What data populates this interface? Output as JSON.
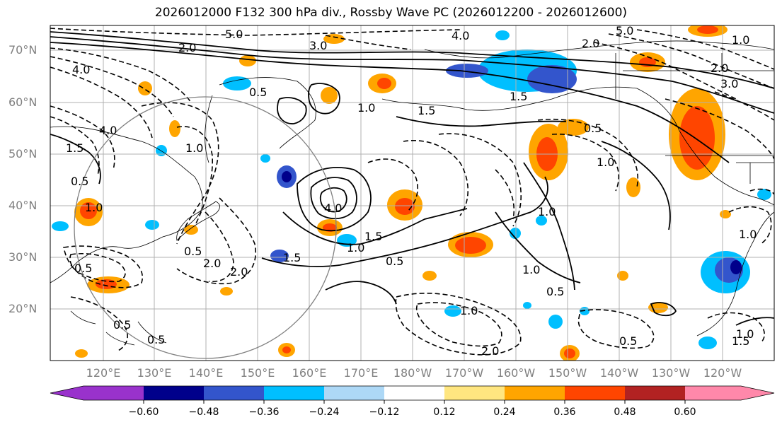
{
  "title": "2026012000 F132 300 hPa div., Rossby Wave PC (2026012200 - 2026012600)",
  "lat_labels": [
    "70°N",
    "60°N",
    "50°N",
    "40°N",
    "30°N",
    "20°N"
  ],
  "lon_labels": [
    "120°E",
    "130°E",
    "140°E",
    "150°E",
    "160°E",
    "170°E",
    "180°W",
    "170°W",
    "160°W",
    "150°W",
    "140°W",
    "130°W",
    "120°W"
  ],
  "colorbar": {
    "ticks": [
      "−0.60",
      "−0.48",
      "−0.36",
      "−0.24",
      "−0.12",
      "0.12",
      "0.24",
      "0.36",
      "0.48",
      "0.60"
    ],
    "colors": [
      "#9932cc",
      "#00008b",
      "#3355cc",
      "#00bfff",
      "#add8f6",
      "#ffffff",
      "#ffe680",
      "#ffa500",
      "#ff4500",
      "#b22222",
      "#ff88aa"
    ]
  },
  "contour_labels": [
    "5.0",
    "3.0",
    "4.0",
    "2.0",
    "1.5",
    "0.5",
    "1.0",
    "5.0",
    "4.0",
    "2.0",
    "3.0",
    "1.0",
    "1.5",
    "1.5",
    "1.0",
    "0.5",
    "1.0",
    "4.0",
    "1.0",
    "0.5",
    "1.5",
    "4.0",
    "1.5",
    "1.0",
    "0.5",
    "2.0",
    "0.5",
    "1.0",
    "2.0",
    "2.0",
    "0.5",
    "1.0",
    "0.5",
    "1.0",
    "0.5",
    "1.0",
    "1.5",
    "1.0",
    "2.0",
    "0.5",
    "0.5"
  ]
}
